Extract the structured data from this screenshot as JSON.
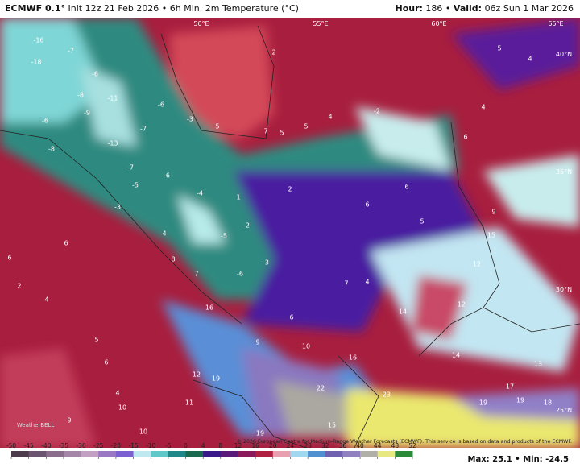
{
  "header": {
    "model": "ECMWF 0.1°",
    "description": "Init 12z 21 Feb 2026 • 6h Min. 2m Temperature (°C)",
    "hour_label": "Hour:",
    "hour": "186",
    "valid_label": "Valid:",
    "valid": "06z Sun 1 Mar 2026"
  },
  "graticule": [
    "50°E",
    "55°E",
    "60°E",
    "65°E",
    "40°N",
    "35°N",
    "30°N",
    "25°N"
  ],
  "map_labels": [
    "-16",
    "-18",
    "-7",
    "-6",
    "-8",
    "-11",
    "-9",
    "-6",
    "-13",
    "-8",
    "-7",
    "-6",
    "-3",
    "5",
    "7",
    "5",
    "5",
    "4",
    "-2",
    "2",
    "4",
    "6",
    "4",
    "5",
    "-7",
    "-6",
    "-4",
    "-3",
    "-5",
    "1",
    "2",
    "6",
    "5",
    "6",
    "9",
    "15",
    "12",
    "4",
    "8",
    "7",
    "-5",
    "-2",
    "-3",
    "-6",
    "7",
    "4",
    "6",
    "14",
    "12",
    "14",
    "13",
    "17",
    "19",
    "19",
    "18",
    "16",
    "9",
    "10",
    "16",
    "12",
    "19",
    "22",
    "23",
    "11",
    "10",
    "9",
    "10",
    "6",
    "4",
    "2",
    "5",
    "6",
    "4",
    "15",
    "19",
    "6"
  ],
  "logo": "WeatherBELL",
  "copyright": "© 2026 European Centre for Medium-Range Weather Forecasts (ECMWF). This service is based on data and products of the ECMWF.",
  "colorbar": {
    "ticks": [
      -50,
      -45,
      -40,
      -35,
      -30,
      -25,
      -20,
      -15,
      -10,
      -5,
      0,
      4,
      8,
      12,
      16,
      20,
      24,
      28,
      32,
      36,
      40,
      44,
      48,
      52
    ],
    "colors": [
      "#4b3b4b",
      "#6b5470",
      "#8a6c8c",
      "#a686a8",
      "#c2a0c4",
      "#9a78c4",
      "#7a60d0",
      "#c0e8f0",
      "#60c8c8",
      "#208888",
      "#1a6a50",
      "#3a1a8a",
      "#5a1a7a",
      "#8a1a5a",
      "#b02040",
      "#e8a0b0",
      "#a0d8f0",
      "#5090d0",
      "#7060b0",
      "#9080c0",
      "#b0b0a8",
      "#e8e880",
      "#2a8a3a"
    ]
  },
  "stats": {
    "max_label": "Max:",
    "max": 25.1,
    "min_label": "Min:",
    "min": -24.5
  }
}
